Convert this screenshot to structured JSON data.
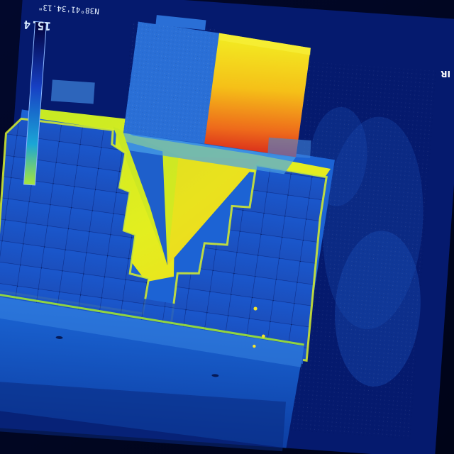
{
  "overlay": {
    "coordinate_readout": "N38°41'34.13\"",
    "temperature_max": "15.4",
    "mode": "IR"
  },
  "palette": {
    "background": "#01072a",
    "cold": "#0b2f8c",
    "cool": "#1e66d8",
    "mild": "#49b9e8",
    "warm": "#d6ef1f",
    "hot": "#f6c41a",
    "hottest": "#e2341b"
  }
}
